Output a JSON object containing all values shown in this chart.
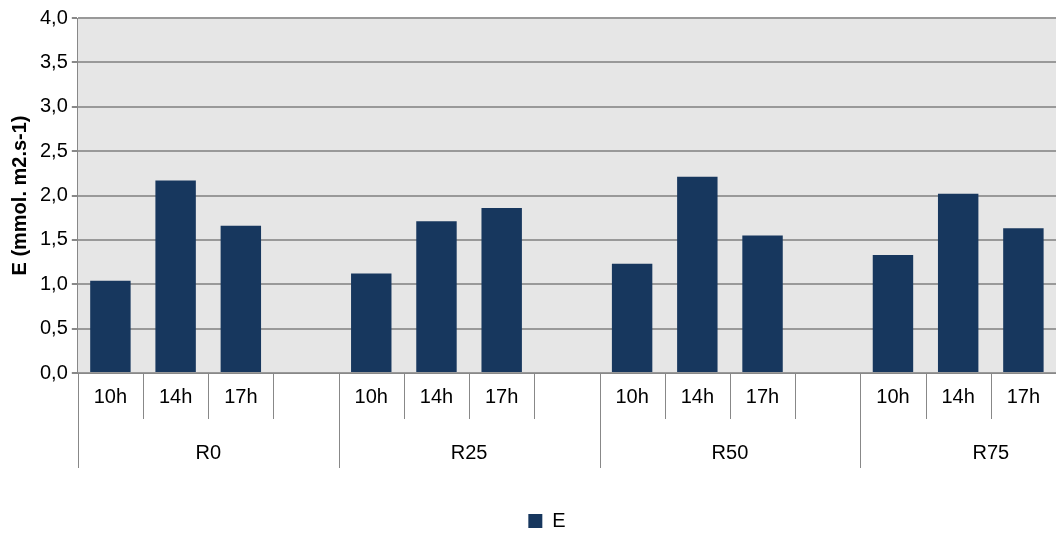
{
  "chart_data": {
    "type": "bar",
    "ylabel": "E (mmol. m2.s-1)",
    "categories": [
      "10h",
      "14h",
      "17h",
      null,
      "10h",
      "14h",
      "17h",
      null,
      "10h",
      "14h",
      "17h",
      null,
      "10h",
      "14h",
      "17h"
    ],
    "series": [
      {
        "name": "E",
        "color": "#17375e",
        "values": [
          1.04,
          2.17,
          1.66,
          null,
          1.12,
          1.71,
          1.86,
          null,
          1.23,
          2.21,
          1.55,
          null,
          1.33,
          2.02,
          1.63
        ]
      }
    ],
    "annotations": [
      "R0",
      "R25",
      "R50",
      "R75"
    ],
    "ylim": [
      0,
      4
    ],
    "yticks": [
      {
        "value": 0,
        "label": "0,0"
      },
      {
        "value": 0.5,
        "label": "0,5"
      },
      {
        "value": 1,
        "label": "1,0"
      },
      {
        "value": 1.5,
        "label": "1,5"
      },
      {
        "value": 2,
        "label": "2,0"
      },
      {
        "value": 2.5,
        "label": "2,5"
      },
      {
        "value": 3,
        "label": "3,0"
      },
      {
        "value": 3.5,
        "label": "3,5"
      },
      {
        "value": 4,
        "label": "4,0"
      }
    ],
    "grid": "y",
    "legend": "bottom"
  }
}
